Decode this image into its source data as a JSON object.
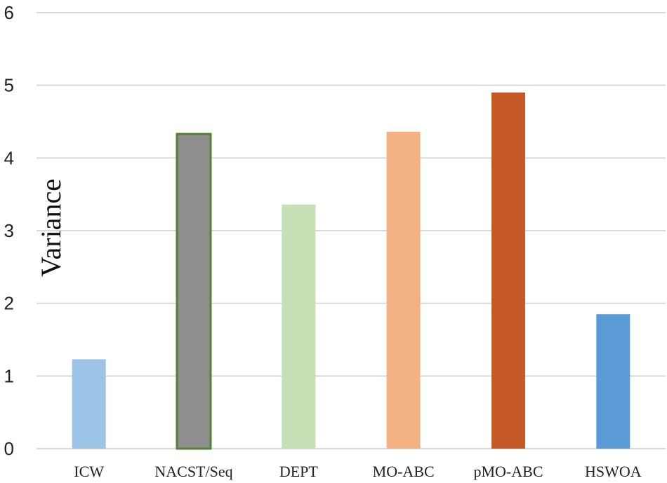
{
  "chart_data": {
    "type": "bar",
    "title": "",
    "xlabel": "",
    "ylabel": "Variance",
    "ylim": [
      0,
      6
    ],
    "yticks": [
      0,
      1,
      2,
      3,
      4,
      5,
      6
    ],
    "grid": true,
    "legend": "none",
    "categories": [
      "ICW",
      "NACST/Seq",
      "DEPT",
      "MO-ABC",
      "pMO-ABC",
      "HSWOA"
    ],
    "values": [
      1.23,
      4.33,
      3.36,
      4.36,
      4.9,
      1.85
    ],
    "colors": [
      "#9dc3e6",
      "#8e8e8e",
      "#c5e0b4",
      "#f4b183",
      "#c55a28",
      "#5b9bd5"
    ],
    "outline_colors": [
      "",
      "#548235",
      "",
      "",
      "",
      ""
    ]
  }
}
